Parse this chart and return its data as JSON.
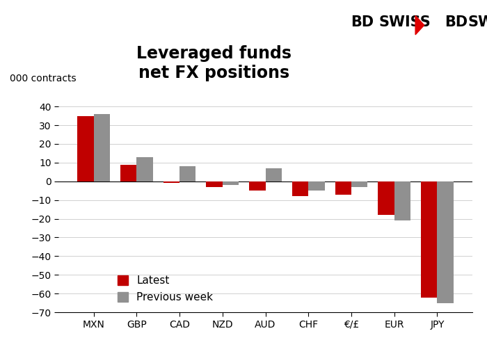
{
  "title": "Leveraged funds\nnet FX positions",
  "ylabel": "000 contracts",
  "categories": [
    "MXN",
    "GBP",
    "CAD",
    "NZD",
    "AUD",
    "CHF",
    "€/£",
    "EUR",
    "JPY"
  ],
  "latest": [
    35,
    9,
    -1,
    -3,
    -5,
    -8,
    -7,
    -18,
    -62
  ],
  "previous_week": [
    36,
    13,
    8,
    -2,
    7,
    -5,
    -3,
    -21,
    -65
  ],
  "latest_color": "#c00000",
  "previous_color": "#909090",
  "ylim": [
    -70,
    45
  ],
  "yticks": [
    -70,
    -60,
    -50,
    -40,
    -30,
    -20,
    -10,
    0,
    10,
    20,
    30,
    40
  ],
  "background_color": "#ffffff",
  "legend_latest": "Latest",
  "legend_previous": "Previous week",
  "title_fontsize": 17,
  "axis_fontsize": 10,
  "tick_fontsize": 10,
  "bar_width": 0.38
}
